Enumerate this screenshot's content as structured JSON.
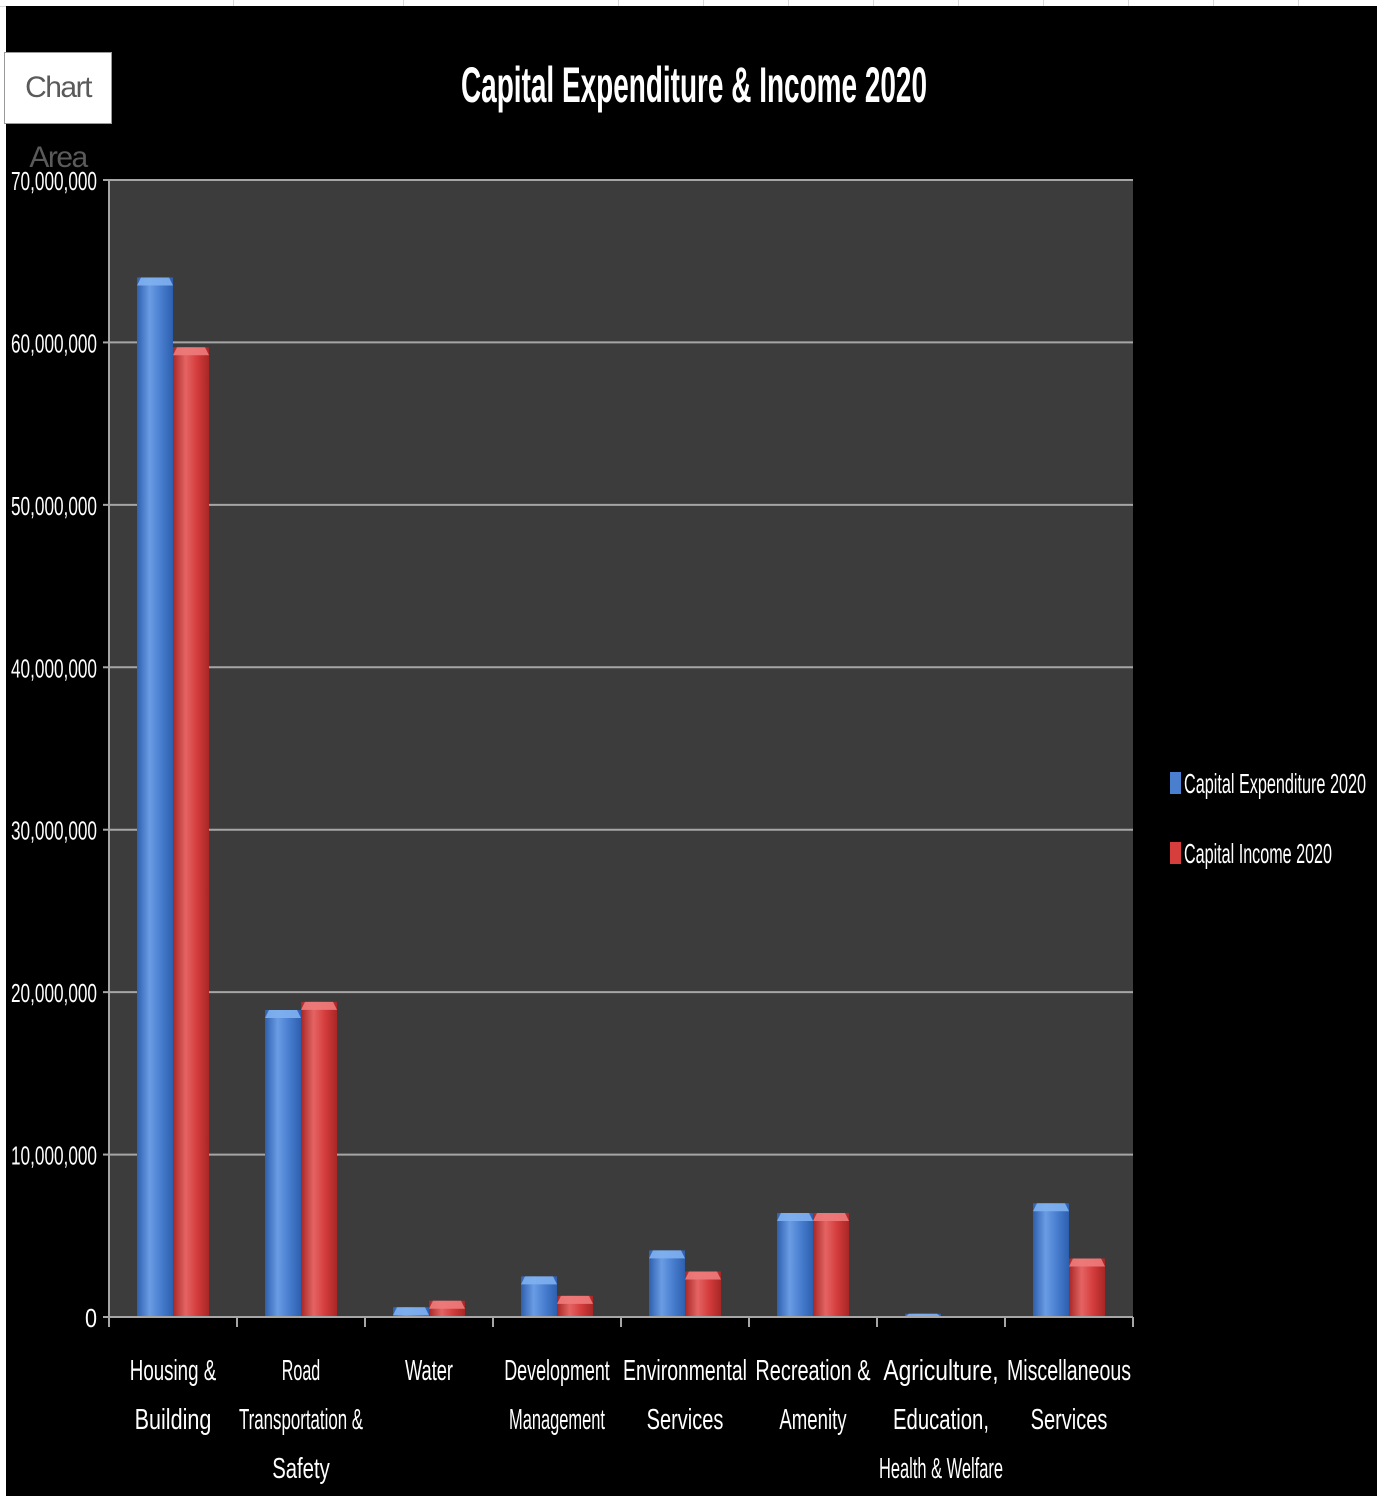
{
  "tooltip": {
    "label": "Chart Area"
  },
  "colors": {
    "chart_area": "#000000",
    "plot_area": "#3c3c3c",
    "gridline": "#a6a6a6",
    "text": "#ffffff",
    "series_expenditure": "#4a7fd0",
    "series_income": "#d63e3e"
  },
  "chart_data": {
    "type": "bar",
    "title": "Capital Expenditure & Income 2020",
    "xlabel": "",
    "ylabel": "",
    "ylim": [
      0,
      70000000
    ],
    "yticks": [
      0,
      10000000,
      20000000,
      30000000,
      40000000,
      50000000,
      60000000,
      70000000
    ],
    "ytick_labels": [
      "0",
      "10,000,000",
      "20,000,000",
      "30,000,000",
      "40,000,000",
      "50,000,000",
      "60,000,000",
      "70,000,000"
    ],
    "grid": true,
    "legend_position": "right",
    "categories": [
      [
        "Housing &",
        "Building"
      ],
      [
        "Road",
        "Transportation &",
        "Safety"
      ],
      [
        "Water"
      ],
      [
        "Development",
        "Management"
      ],
      [
        "Environmental",
        "Services"
      ],
      [
        "Recreation &",
        "Amenity"
      ],
      [
        "Agriculture,",
        "Education,",
        "Health & Welfare"
      ],
      [
        "Miscellaneous",
        "Services"
      ]
    ],
    "series": [
      {
        "name": "Capital Expenditure 2020",
        "color": "#4a7fd0",
        "values": [
          64000000,
          18900000,
          600000,
          2500000,
          4100000,
          6400000,
          200000,
          7000000
        ]
      },
      {
        "name": "Capital Income 2020",
        "color": "#d63e3e",
        "values": [
          59700000,
          19400000,
          1000000,
          1300000,
          2800000,
          6400000,
          0,
          3600000
        ]
      }
    ]
  }
}
